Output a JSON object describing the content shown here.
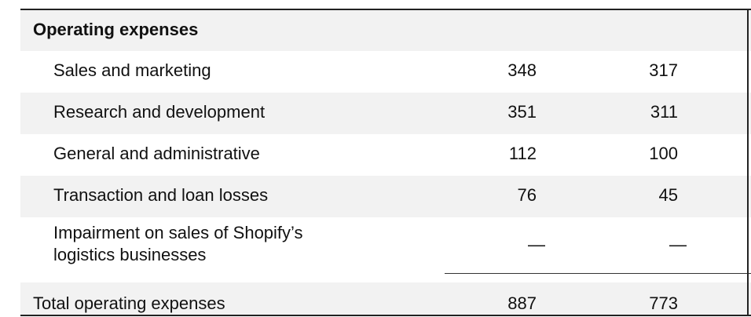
{
  "table": {
    "header": "Operating expenses",
    "rows": [
      [
        "Sales and marketing",
        348,
        317
      ],
      [
        "Research and development",
        351,
        311
      ],
      [
        "General and administrative",
        112,
        100
      ],
      [
        "Transaction and loan losses",
        76,
        45
      ],
      [
        "Impairment on sales of Shopify’s logistics businesses",
        "—",
        "—"
      ]
    ],
    "total": [
      "Total operating expenses",
      887,
      773
    ]
  }
}
